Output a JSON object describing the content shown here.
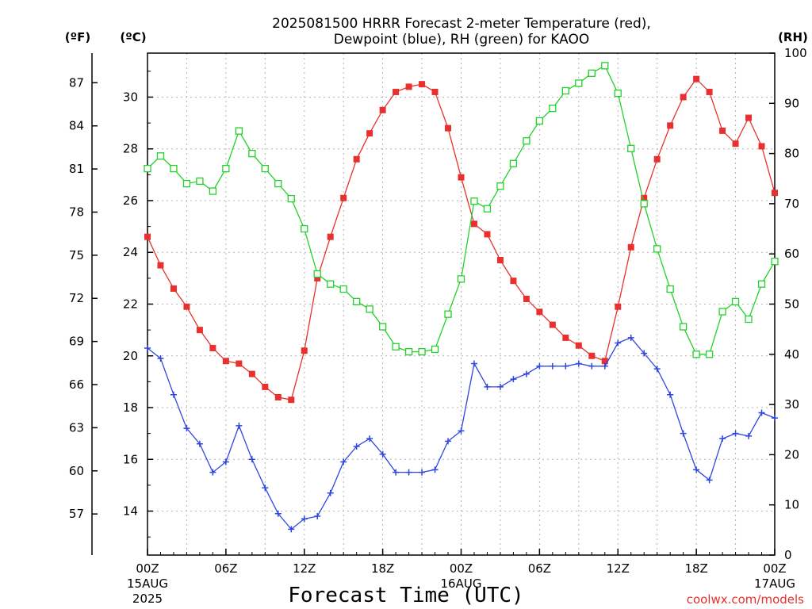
{
  "chart_data": {
    "type": "line",
    "title_line1": "2025081500 HRRR Forecast 2-meter Temperature (red),",
    "title_line2": "Dewpoint (blue), RH (green) for KAOO",
    "xlabel": "Forecast Time (UTC)",
    "units": {
      "fahrenheit": "(ºF)",
      "celsius": "(ºC)",
      "rh": "(RH)"
    },
    "credit": "coolwx.com/models",
    "x_ticks": [
      {
        "hour": 0,
        "label": "00Z",
        "date1": "15AUG",
        "date2": "2025"
      },
      {
        "hour": 6,
        "label": "06Z"
      },
      {
        "hour": 12,
        "label": "12Z"
      },
      {
        "hour": 18,
        "label": "18Z"
      },
      {
        "hour": 24,
        "label": "00Z",
        "date1": "16AUG"
      },
      {
        "hour": 30,
        "label": "06Z"
      },
      {
        "hour": 36,
        "label": "12Z"
      },
      {
        "hour": 42,
        "label": "18Z"
      },
      {
        "hour": 48,
        "label": "00Z",
        "date1": "17AUG"
      }
    ],
    "xlim": [
      0,
      48
    ],
    "celsius_ticks": [
      "14",
      "16",
      "18",
      "20",
      "22",
      "24",
      "26",
      "28",
      "30"
    ],
    "ylim_celsius": [
      12.3,
      31.7
    ],
    "fahrenheit_ticks": [
      "57",
      "60",
      "63",
      "66",
      "69",
      "72",
      "75",
      "78",
      "81",
      "84",
      "87"
    ],
    "rh_ticks": [
      "0",
      "10",
      "20",
      "30",
      "40",
      "50",
      "60",
      "70",
      "80",
      "90",
      "100"
    ],
    "ylim_rh": [
      0,
      100
    ],
    "grid": true,
    "series": [
      {
        "key": "temperature",
        "color": "#e8312e",
        "marker": "filled-square",
        "axis": "celsius",
        "x": [
          0,
          1,
          2,
          3,
          4,
          5,
          6,
          7,
          8,
          9,
          10,
          11,
          12,
          13,
          14,
          15,
          16,
          17,
          18,
          19,
          20,
          21,
          22,
          23,
          24,
          25,
          26,
          27,
          28,
          29,
          30,
          31,
          32,
          33,
          34,
          35,
          36,
          37,
          38,
          39,
          40,
          41,
          42,
          43,
          44,
          45,
          46,
          47,
          48
        ],
        "values": [
          24.6,
          23.5,
          22.6,
          21.9,
          21.0,
          20.3,
          19.8,
          19.7,
          19.3,
          18.8,
          18.4,
          18.3,
          20.2,
          23.0,
          24.6,
          26.1,
          27.6,
          28.6,
          29.5,
          30.2,
          30.4,
          30.5,
          30.2,
          28.8,
          26.9,
          25.1,
          24.7,
          23.7,
          22.9,
          22.2,
          21.7,
          21.2,
          20.7,
          20.4,
          20.0,
          19.8,
          21.9,
          24.2,
          26.1,
          27.6,
          28.9,
          30.0,
          30.7,
          30.2,
          28.7,
          28.2,
          29.2,
          28.1,
          26.3
        ]
      },
      {
        "key": "dewpoint",
        "color": "#2f46e0",
        "marker": "plus",
        "axis": "celsius",
        "x": [
          0,
          1,
          2,
          3,
          4,
          5,
          6,
          7,
          8,
          9,
          10,
          11,
          12,
          13,
          14,
          15,
          16,
          17,
          18,
          19,
          20,
          21,
          22,
          23,
          24,
          25,
          26,
          27,
          28,
          29,
          30,
          31,
          32,
          33,
          34,
          35,
          36,
          37,
          38,
          39,
          40,
          41,
          42,
          43,
          44,
          45,
          46,
          47,
          48
        ],
        "values": [
          20.3,
          19.9,
          18.5,
          17.2,
          16.6,
          15.5,
          15.9,
          17.3,
          16.0,
          14.9,
          13.9,
          13.3,
          13.7,
          13.8,
          14.7,
          15.9,
          16.5,
          16.8,
          16.2,
          15.5,
          15.5,
          15.5,
          15.6,
          16.7,
          17.1,
          19.7,
          18.8,
          18.8,
          19.1,
          19.3,
          19.6,
          19.6,
          19.6,
          19.7,
          19.6,
          19.6,
          20.5,
          20.7,
          20.1,
          19.5,
          18.5,
          17.0,
          15.6,
          15.2,
          16.8,
          17.0,
          16.9,
          17.8,
          17.6
        ]
      },
      {
        "key": "rh",
        "color": "#22d22a",
        "marker": "open-square",
        "axis": "rh",
        "x": [
          0,
          1,
          2,
          3,
          4,
          5,
          6,
          7,
          8,
          9,
          10,
          11,
          12,
          13,
          14,
          15,
          16,
          17,
          18,
          19,
          20,
          21,
          22,
          23,
          24,
          25,
          26,
          27,
          28,
          29,
          30,
          31,
          32,
          33,
          34,
          35,
          36,
          37,
          38,
          39,
          40,
          41,
          42,
          43,
          44,
          45,
          46,
          47,
          48
        ],
        "values": [
          77,
          79.5,
          77,
          74,
          74.5,
          72.5,
          77,
          84.5,
          80,
          77,
          74,
          71,
          65,
          56,
          54,
          53,
          50.5,
          49,
          45.5,
          41.5,
          40.5,
          40.5,
          41,
          48,
          55,
          70.5,
          69,
          73.5,
          78,
          82.5,
          86.5,
          89,
          92.5,
          94,
          96,
          97.5,
          92,
          81,
          70,
          61,
          53,
          45.5,
          40,
          40,
          48.5,
          50.5,
          47,
          54,
          58.5
        ]
      }
    ]
  }
}
